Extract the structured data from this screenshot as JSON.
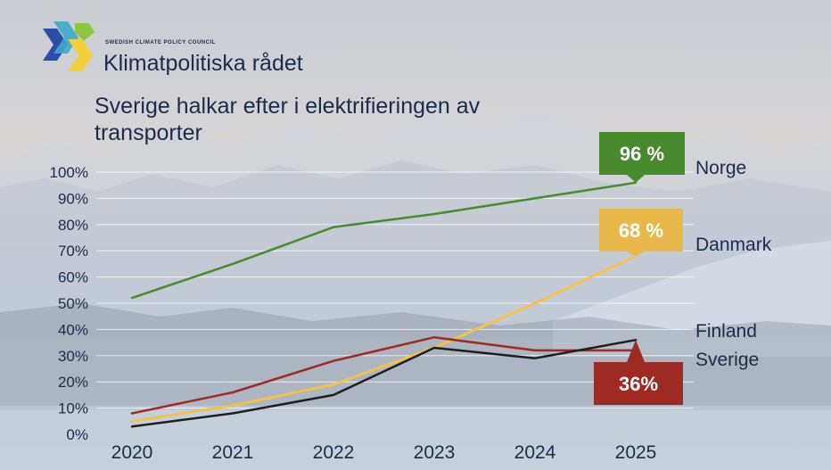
{
  "org": {
    "small_name": "SWEDISH CLIMATE POLICY COUNCIL",
    "name": "Klimatpolitiska rådet",
    "logo_icon": "x-logo-icon"
  },
  "title": "Sverige halkar efter i elektrifieringen av transporter",
  "colors": {
    "norge": "#4a8a2e",
    "danmark": "#f3c24a",
    "finland": "#9e2a24",
    "sverige": "#1e1e1e",
    "badge_norge": "#4a8a2e",
    "badge_danmark": "#e9b84a",
    "badge_sverige": "#9e2a24",
    "text": "#1c2b4a"
  },
  "chart_data": {
    "type": "line",
    "title": "Sverige halkar efter i elektrifieringen av transporter",
    "xlabel": "",
    "ylabel": "",
    "x": [
      "2020",
      "2021",
      "2022",
      "2023",
      "2024",
      "2025"
    ],
    "ylim": [
      0,
      100
    ],
    "yticks": [
      "0%",
      "10%",
      "20%",
      "30%",
      "40%",
      "50%",
      "60%",
      "70%",
      "80%",
      "90%",
      "100%"
    ],
    "grid": true,
    "series": [
      {
        "key": "norge",
        "name": "Norge",
        "values": [
          52,
          65,
          79,
          84,
          90,
          96
        ]
      },
      {
        "key": "danmark",
        "name": "Danmark",
        "values": [
          5,
          11,
          19,
          33,
          50,
          68
        ]
      },
      {
        "key": "finland",
        "name": "Finland",
        "values": [
          8,
          16,
          28,
          37,
          32,
          32
        ]
      },
      {
        "key": "sverige",
        "name": "Sverige",
        "values": [
          3,
          8,
          15,
          33,
          29,
          36
        ]
      }
    ],
    "annotations": [
      {
        "key": "norge",
        "label": "96 %"
      },
      {
        "key": "danmark",
        "label": "68 %"
      },
      {
        "key": "sverige",
        "label": "36%"
      }
    ]
  }
}
